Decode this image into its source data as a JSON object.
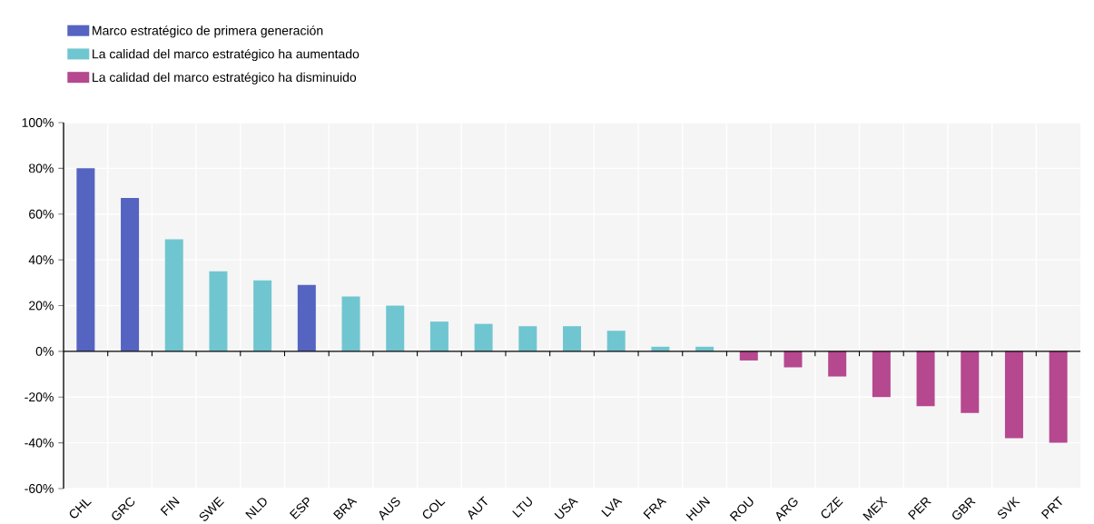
{
  "chart_data": {
    "type": "bar",
    "categories": [
      "CHL",
      "GRC",
      "FIN",
      "SWE",
      "NLD",
      "ESP",
      "BRA",
      "AUS",
      "COL",
      "AUT",
      "LTU",
      "USA",
      "LVA",
      "FRA",
      "HUN",
      "ROU",
      "ARG",
      "CZE",
      "MEX",
      "PER",
      "GBR",
      "SVK",
      "PRT"
    ],
    "series": [
      {
        "name": "Marco estratégico de primera generación",
        "color": "#5563c1",
        "values": [
          80,
          67,
          null,
          null,
          null,
          29,
          null,
          null,
          null,
          null,
          null,
          null,
          null,
          null,
          null,
          null,
          null,
          null,
          null,
          null,
          null,
          null,
          null
        ]
      },
      {
        "name": "La calidad del marco estratégico ha aumentado",
        "color": "#70c6d0",
        "values": [
          null,
          null,
          49,
          35,
          31,
          null,
          24,
          20,
          13,
          12,
          11,
          11,
          9,
          2,
          2,
          null,
          null,
          null,
          null,
          null,
          null,
          null,
          null
        ]
      },
      {
        "name": "La calidad del marco estratégico ha disminuido",
        "color": "#b5488f",
        "values": [
          null,
          null,
          null,
          null,
          null,
          null,
          null,
          null,
          null,
          null,
          null,
          null,
          null,
          null,
          null,
          -4,
          -7,
          -11,
          -20,
          -24,
          -27,
          -38,
          -40
        ]
      }
    ],
    "ylim": [
      -60,
      100
    ],
    "yticks": [
      {
        "value": -60,
        "label": "-60%"
      },
      {
        "value": -40,
        "label": "-40%"
      },
      {
        "value": -20,
        "label": "-20%"
      },
      {
        "value": 0,
        "label": "0%"
      },
      {
        "value": 20,
        "label": "20%"
      },
      {
        "value": 40,
        "label": "40%"
      },
      {
        "value": 60,
        "label": "60%"
      },
      {
        "value": 80,
        "label": "80%"
      },
      {
        "value": 100,
        "label": "100%"
      }
    ],
    "grid": true,
    "legend": "top left"
  }
}
